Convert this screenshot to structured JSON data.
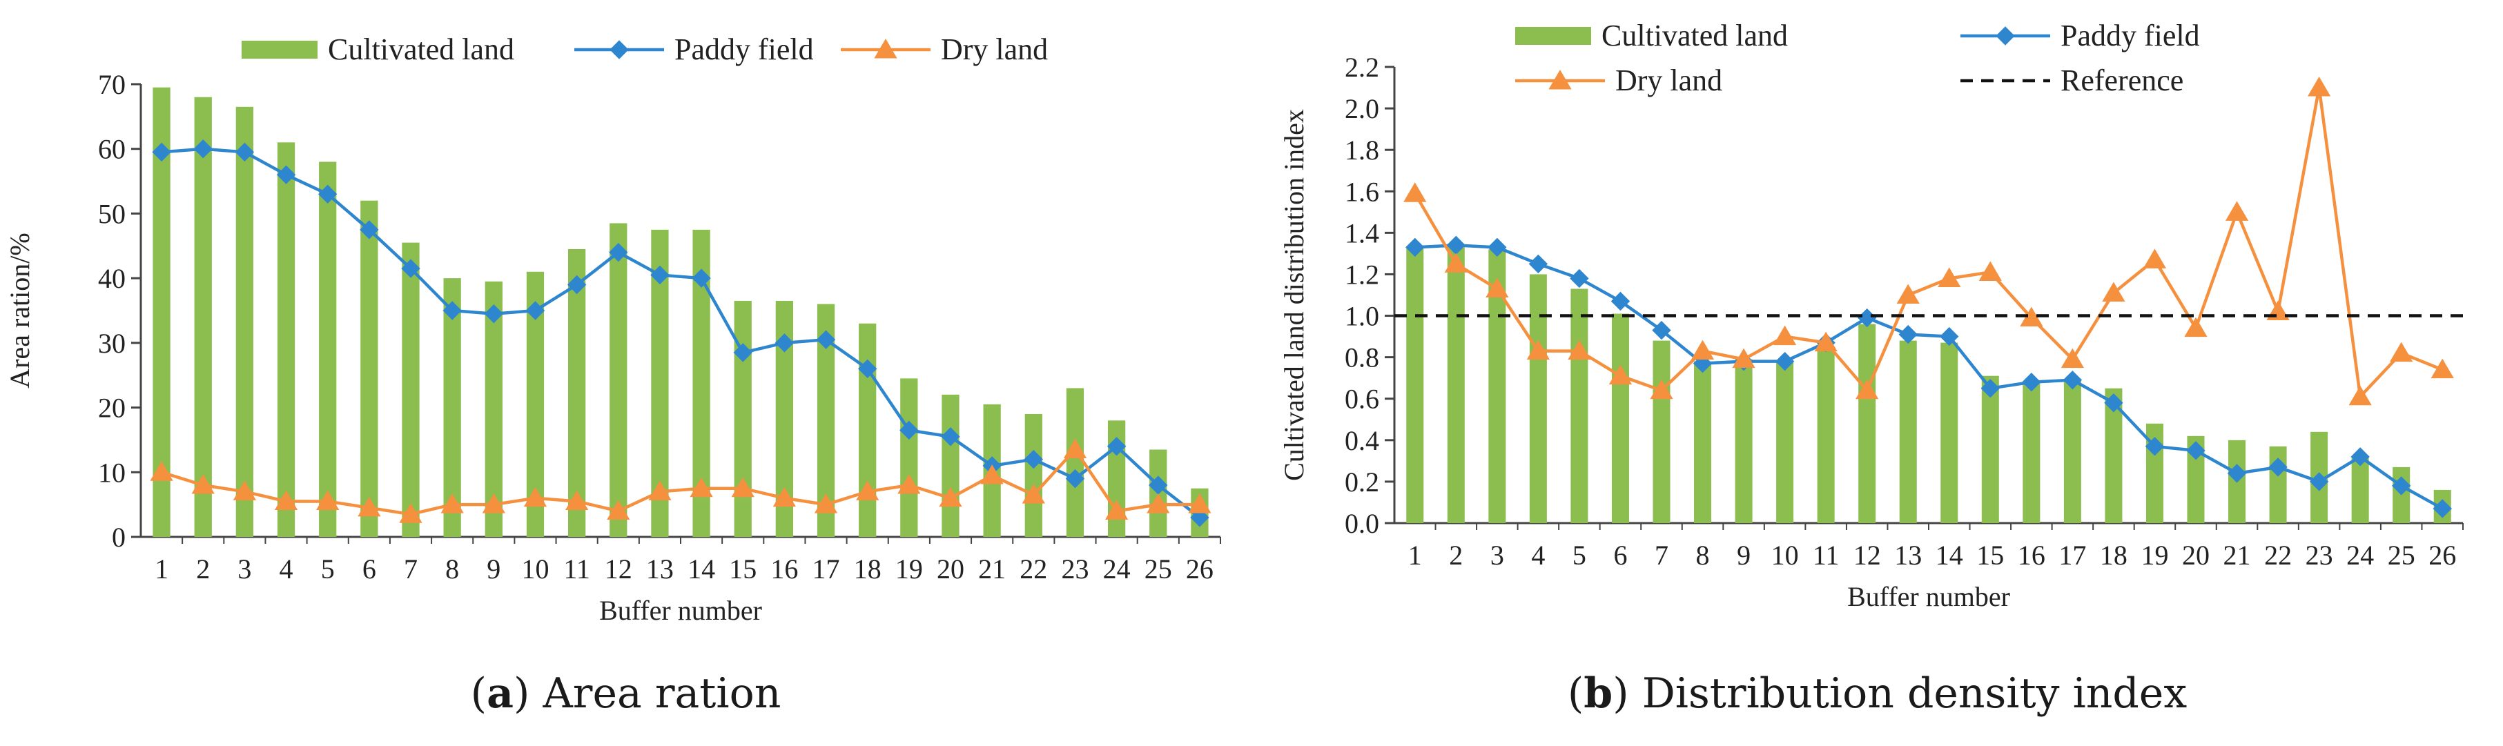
{
  "chart_data": [
    {
      "type": "bar",
      "panel_letter": "a",
      "panel_title": "Area ration",
      "xlabel": "Buffer number",
      "ylabel": "Area ration/%",
      "ylim": [
        0,
        70
      ],
      "yticks": [
        "0",
        "10",
        "20",
        "30",
        "40",
        "50",
        "60",
        "70"
      ],
      "grid": false,
      "legend_position": "top",
      "categories": [
        "1",
        "2",
        "3",
        "4",
        "5",
        "6",
        "7",
        "8",
        "9",
        "10",
        "11",
        "12",
        "13",
        "14",
        "15",
        "16",
        "17",
        "18",
        "19",
        "20",
        "21",
        "22",
        "23",
        "24",
        "25",
        "26"
      ],
      "series": [
        {
          "name": "Cultivated land",
          "kind": "bar",
          "color": "#8cbd4f",
          "values": [
            69.5,
            68,
            66.5,
            61,
            58,
            52,
            45.5,
            40,
            39.5,
            41,
            44.5,
            48.5,
            47.5,
            47.5,
            36.5,
            36.5,
            36,
            33,
            24.5,
            22,
            20.5,
            19,
            23,
            18,
            13.5,
            7.5
          ]
        },
        {
          "name": "Paddy field",
          "kind": "line",
          "marker": "diamond",
          "color": "#2e86cf",
          "values": [
            59.5,
            60,
            59.5,
            56,
            53,
            47.5,
            41.5,
            35,
            34.5,
            35,
            39,
            44,
            40.5,
            40,
            28.5,
            30,
            30.5,
            26,
            16.5,
            15.5,
            11,
            12,
            9,
            14,
            8,
            3
          ]
        },
        {
          "name": "Dry land",
          "kind": "line",
          "marker": "triangle",
          "color": "#f5913e",
          "values": [
            10,
            8,
            7,
            5.5,
            5.5,
            4.5,
            3.5,
            5,
            5,
            6,
            5.5,
            4,
            7,
            7.5,
            7.5,
            6,
            5,
            7,
            8,
            6,
            9.5,
            6.5,
            13.5,
            4,
            5,
            5
          ]
        }
      ]
    },
    {
      "type": "bar",
      "panel_letter": "b",
      "panel_title": "Distribution density index",
      "xlabel": "Buffer number",
      "ylabel": "Cultivated land distribution index",
      "ylim": [
        0,
        2.2
      ],
      "yticks": [
        "0.0",
        "0.2",
        "0.4",
        "0.6",
        "0.8",
        "1.0",
        "1.2",
        "1.4",
        "1.6",
        "1.8",
        "2.0",
        "2.2"
      ],
      "grid": false,
      "legend_position": "top",
      "categories": [
        "1",
        "2",
        "3",
        "4",
        "5",
        "6",
        "7",
        "8",
        "9",
        "10",
        "11",
        "12",
        "13",
        "14",
        "15",
        "16",
        "17",
        "18",
        "19",
        "20",
        "21",
        "22",
        "23",
        "24",
        "25",
        "26"
      ],
      "series": [
        {
          "name": "Cultivated land",
          "kind": "bar",
          "color": "#8cbd4f",
          "values": [
            1.33,
            1.33,
            1.32,
            1.2,
            1.13,
            1.01,
            0.88,
            0.78,
            0.79,
            0.78,
            0.85,
            0.96,
            0.88,
            0.87,
            0.71,
            0.68,
            0.69,
            0.65,
            0.48,
            0.42,
            0.4,
            0.37,
            0.44,
            0.32,
            0.27,
            0.16
          ]
        },
        {
          "name": "Paddy field",
          "kind": "line",
          "marker": "diamond",
          "color": "#2e86cf",
          "values": [
            1.33,
            1.34,
            1.33,
            1.25,
            1.18,
            1.07,
            0.93,
            0.77,
            0.78,
            0.78,
            0.87,
            0.99,
            0.91,
            0.9,
            0.65,
            0.68,
            0.69,
            0.58,
            0.37,
            0.35,
            0.24,
            0.27,
            0.2,
            0.32,
            0.18,
            0.07
          ]
        },
        {
          "name": "Dry land",
          "kind": "line",
          "marker": "triangle",
          "color": "#f5913e",
          "values": [
            1.59,
            1.25,
            1.13,
            0.83,
            0.83,
            0.71,
            0.64,
            0.83,
            0.79,
            0.9,
            0.87,
            0.64,
            1.1,
            1.18,
            1.21,
            0.99,
            0.79,
            1.11,
            1.27,
            0.94,
            1.5,
            1.02,
            2.1,
            0.61,
            0.82,
            0.74
          ]
        },
        {
          "name": "Reference",
          "kind": "reference",
          "style": "dashed",
          "color": "#111111",
          "value": 1.0
        }
      ]
    }
  ]
}
